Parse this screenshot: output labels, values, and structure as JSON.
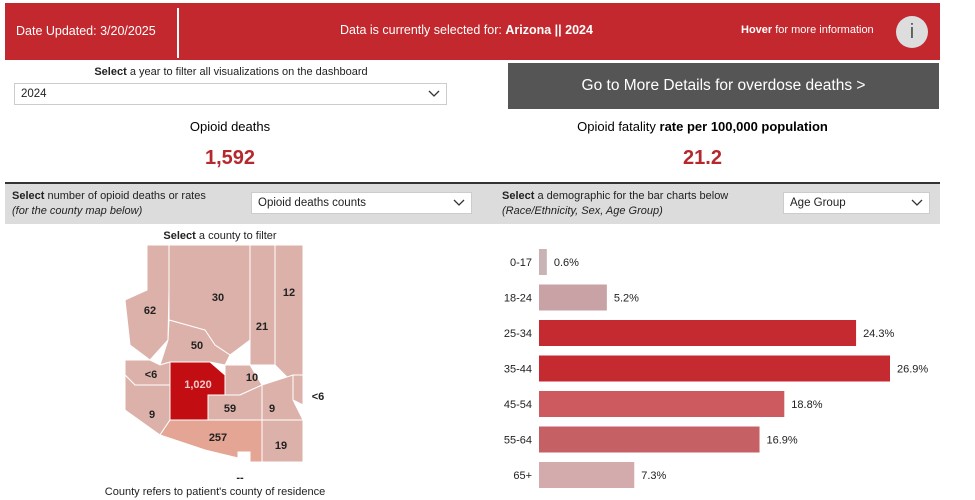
{
  "header": {
    "date_updated": "Date Updated: 3/20/2025",
    "selection_prefix": "Data is currently selected for:",
    "selection": "Arizona || 2024",
    "hover_bold": "Hover",
    "hover_text": "for more information",
    "info_icon": "i"
  },
  "year_filter": {
    "bold": "Select",
    "text": "a year to filter all visualizations on the dashboard",
    "selected": "2024"
  },
  "details_button": "Go to More Details for overdose deaths >",
  "kpis": [
    {
      "label": "Opioid deaths",
      "value": "1,592"
    },
    {
      "label": "Opioid fatality",
      "label_bold": "rate per 100,000 population",
      "value": "21.2"
    }
  ],
  "measure_filter": {
    "bold": "Select",
    "text": "number of opioid deaths or rates",
    "note": "(for the county map below)",
    "selected": "Opioid deaths counts"
  },
  "demographic_filter": {
    "bold": "Select",
    "text": "a demographic for the bar charts below",
    "note": "(Race/Ethnicity, Sex, Age Group)",
    "selected": "Age Group"
  },
  "map": {
    "title_bold": "Select",
    "title": "a county to filter",
    "counties": [
      {
        "label": "62"
      },
      {
        "label": "30"
      },
      {
        "label": "21"
      },
      {
        "label": "12"
      },
      {
        "label": "50"
      },
      {
        "label": "<6"
      },
      {
        "label": "1,020"
      },
      {
        "label": "10"
      },
      {
        "label": "<6"
      },
      {
        "label": "9"
      },
      {
        "label": "59"
      },
      {
        "label": "9"
      },
      {
        "label": "257"
      },
      {
        "label": "--"
      },
      {
        "label": "19"
      }
    ],
    "footnote": "County refers to patient's county of residence"
  },
  "chart_data": {
    "type": "bar",
    "orientation": "horizontal",
    "categories": [
      "0-17",
      "18-24",
      "25-34",
      "35-44",
      "45-54",
      "55-64",
      "65+"
    ],
    "values": [
      0.6,
      5.2,
      24.3,
      26.9,
      18.8,
      16.9,
      7.3
    ],
    "value_labels": [
      "0.6%",
      "5.2%",
      "24.3%",
      "26.9%",
      "18.8%",
      "16.9%",
      "7.3%"
    ],
    "colors": [
      "#c9b3b4",
      "#c9a2a5",
      "#c52a30",
      "#c52a30",
      "#cc5a5e",
      "#c56064",
      "#d4abad"
    ]
  }
}
